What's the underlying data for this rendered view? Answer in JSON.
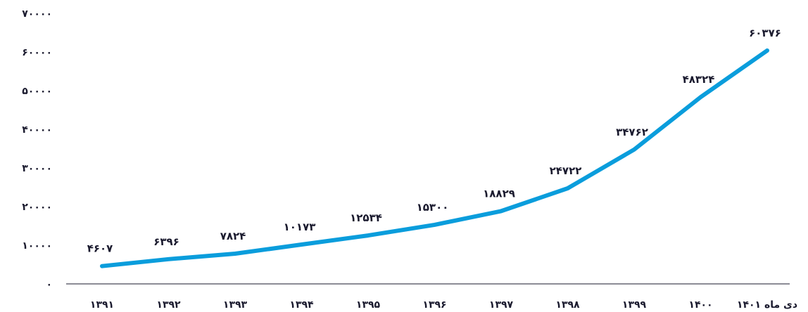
{
  "chart_data": {
    "type": "line",
    "title": "",
    "xlabel": "",
    "ylabel": "",
    "grid": false,
    "line_color": "#0a9ddc",
    "text_color": "#1a1a2e",
    "ylim": [
      0,
      70000
    ],
    "y_ticks": [
      {
        "value": 0,
        "label": "۰"
      },
      {
        "value": 10000,
        "label": "۱۰۰۰۰"
      },
      {
        "value": 20000,
        "label": "۲۰۰۰۰"
      },
      {
        "value": 30000,
        "label": "۳۰۰۰۰"
      },
      {
        "value": 40000,
        "label": "۴۰۰۰۰"
      },
      {
        "value": 50000,
        "label": "۵۰۰۰۰"
      },
      {
        "value": 60000,
        "label": "۶۰۰۰۰"
      },
      {
        "value": 70000,
        "label": "۷۰۰۰۰"
      }
    ],
    "categories": [
      "۱۳۹۱",
      "۱۳۹۲",
      "۱۳۹۳",
      "۱۳۹۴",
      "۱۳۹۵",
      "۱۳۹۶",
      "۱۳۹۷",
      "۱۳۹۸",
      "۱۳۹۹",
      "۱۴۰۰",
      "دی ماه ۱۴۰۱"
    ],
    "values": [
      4607,
      6396,
      7824,
      10173,
      12534,
      15300,
      18829,
      24722,
      34762,
      48324,
      60376
    ],
    "value_labels": [
      "۴۶۰۷",
      "۶۳۹۶",
      "۷۸۲۴",
      "۱۰۱۷۳",
      "۱۲۵۳۴",
      "۱۵۳۰۰",
      "۱۸۸۲۹",
      "۲۴۷۲۲",
      "۳۴۷۶۲",
      "۴۸۳۲۴",
      "۶۰۳۷۶"
    ]
  }
}
